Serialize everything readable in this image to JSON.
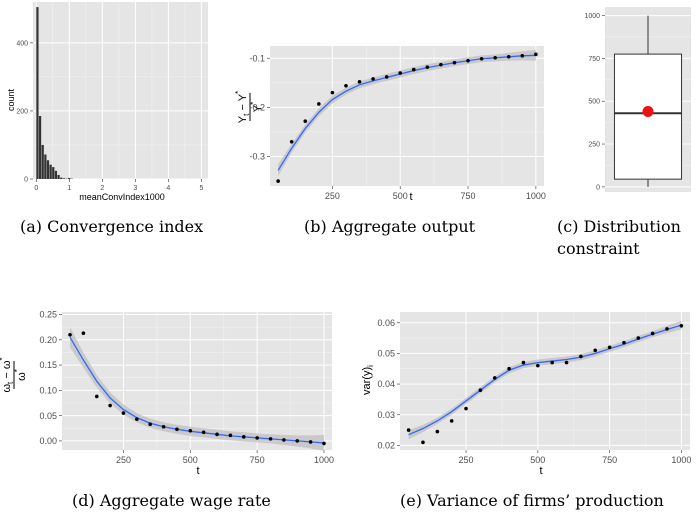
{
  "captions": {
    "a": "(a) Convergence index",
    "b": "(b) Aggregate output",
    "c_line1": "(c)    Distribution",
    "c_line2": "constraint",
    "d": "(d) Aggregate wage rate",
    "e": "(e) Variance of firms’ production"
  },
  "chart_data": [
    {
      "id": "a",
      "type": "bar",
      "xlabel": "meanConvIndex1000",
      "ylabel": "count",
      "xlim": [
        -0.1,
        5.2
      ],
      "ylim": [
        0,
        520
      ],
      "xticks": [
        0,
        1,
        2,
        3,
        4,
        5
      ],
      "yticks": [
        0,
        200,
        400
      ],
      "bin_width": 0.08,
      "x": [
        0.04,
        0.12,
        0.2,
        0.28,
        0.36,
        0.44,
        0.52,
        0.6,
        0.68,
        0.76,
        0.84,
        0.92,
        1.0,
        1.08
      ],
      "values": [
        505,
        185,
        100,
        72,
        55,
        42,
        35,
        24,
        12,
        4,
        2,
        1,
        3,
        1
      ],
      "grid": true
    },
    {
      "id": "b",
      "type": "line",
      "xlabel": "t",
      "ylabel_num": "Y",
      "ylabel_num_sub": "t",
      "ylabel_num_minus": " − Y",
      "ylabel_num_sup": "*",
      "ylabel_den": "Y",
      "ylabel_den_sup": "*",
      "xlim": [
        20,
        1030
      ],
      "ylim": [
        -0.36,
        -0.075
      ],
      "xticks": [
        250,
        500,
        750,
        1000
      ],
      "yticks": [
        -0.3,
        -0.2,
        -0.1
      ],
      "ytick_labels": [
        "-0.3",
        "-0.2",
        "-0.1"
      ],
      "points": {
        "x": [
          50,
          100,
          150,
          200,
          250,
          300,
          350,
          400,
          450,
          500,
          550,
          600,
          650,
          700,
          750,
          800,
          850,
          900,
          950,
          1000
        ],
        "y": [
          -0.35,
          -0.27,
          -0.228,
          -0.193,
          -0.17,
          -0.156,
          -0.148,
          -0.142,
          -0.138,
          -0.13,
          -0.123,
          -0.118,
          -0.113,
          -0.109,
          -0.105,
          -0.101,
          -0.099,
          -0.097,
          -0.095,
          -0.092
        ]
      },
      "fit": {
        "x": [
          50,
          100,
          150,
          200,
          250,
          300,
          350,
          400,
          450,
          500,
          550,
          600,
          650,
          700,
          750,
          800,
          850,
          900,
          950,
          1000
        ],
        "y": [
          -0.328,
          -0.283,
          -0.243,
          -0.21,
          -0.184,
          -0.167,
          -0.154,
          -0.146,
          -0.139,
          -0.132,
          -0.125,
          -0.119,
          -0.114,
          -0.109,
          -0.105,
          -0.101,
          -0.099,
          -0.097,
          -0.095,
          -0.094
        ],
        "band": [
          0.012,
          0.009,
          0.008,
          0.008,
          0.008,
          0.007,
          0.007,
          0.007,
          0.007,
          0.007,
          0.007,
          0.007,
          0.007,
          0.007,
          0.007,
          0.007,
          0.007,
          0.008,
          0.009,
          0.011
        ]
      },
      "grid": true
    },
    {
      "id": "c",
      "type": "box",
      "ylim": [
        -30,
        1050
      ],
      "yticks": [
        0,
        250,
        500,
        750,
        1000
      ],
      "min": 0,
      "q1": 45,
      "median": 430,
      "q3": 775,
      "max": 1000,
      "mean": 440,
      "mean_color": "#ee1111",
      "grid": true
    },
    {
      "id": "d",
      "type": "line",
      "xlabel": "t",
      "ylabel_num": "ω",
      "ylabel_num_sub": "t",
      "ylabel_num_minus": " − ω",
      "ylabel_num_sup": "*",
      "ylabel_den": "ω",
      "ylabel_den_sup": "*",
      "xlim": [
        20,
        1030
      ],
      "ylim": [
        -0.018,
        0.255
      ],
      "xticks": [
        250,
        500,
        750,
        1000
      ],
      "yticks": [
        0.0,
        0.05,
        0.1,
        0.15,
        0.2,
        0.25
      ],
      "ytick_labels": [
        "0.00",
        "0.05",
        "0.10",
        "0.15",
        "0.20",
        "0.25"
      ],
      "points": {
        "x": [
          50,
          100,
          150,
          200,
          250,
          300,
          350,
          400,
          450,
          500,
          550,
          600,
          650,
          700,
          750,
          800,
          850,
          900,
          950,
          1000
        ],
        "y": [
          0.21,
          0.213,
          0.088,
          0.07,
          0.055,
          0.043,
          0.033,
          0.028,
          0.023,
          0.02,
          0.017,
          0.013,
          0.011,
          0.008,
          0.006,
          0.004,
          0.002,
          0.0,
          -0.002,
          -0.005
        ]
      },
      "fit": {
        "x": [
          50,
          100,
          150,
          200,
          250,
          300,
          350,
          400,
          450,
          500,
          550,
          600,
          650,
          700,
          750,
          800,
          850,
          900,
          950,
          1000
        ],
        "y": [
          0.205,
          0.16,
          0.118,
          0.085,
          0.062,
          0.046,
          0.035,
          0.028,
          0.023,
          0.019,
          0.016,
          0.013,
          0.01,
          0.008,
          0.006,
          0.004,
          0.002,
          0.0,
          -0.002,
          -0.004
        ],
        "band": [
          0.02,
          0.015,
          0.012,
          0.011,
          0.01,
          0.009,
          0.009,
          0.009,
          0.009,
          0.009,
          0.009,
          0.009,
          0.009,
          0.009,
          0.009,
          0.009,
          0.01,
          0.011,
          0.013,
          0.016
        ]
      },
      "grid": true
    },
    {
      "id": "e",
      "type": "line",
      "xlabel": "t",
      "ylabel": "var(y)",
      "ylabel_sub": "i",
      "xlim": [
        20,
        1030
      ],
      "ylim": [
        0.0185,
        0.0635
      ],
      "xticks": [
        250,
        500,
        750,
        1000
      ],
      "yticks": [
        0.02,
        0.03,
        0.04,
        0.05,
        0.06
      ],
      "ytick_labels": [
        "0.02",
        "0.03",
        "0.04",
        "0.05",
        "0.06"
      ],
      "points": {
        "x": [
          50,
          100,
          150,
          200,
          250,
          300,
          350,
          400,
          450,
          500,
          550,
          600,
          650,
          700,
          750,
          800,
          850,
          900,
          950,
          1000
        ],
        "y": [
          0.025,
          0.021,
          0.0245,
          0.028,
          0.032,
          0.038,
          0.042,
          0.045,
          0.047,
          0.046,
          0.047,
          0.047,
          0.049,
          0.051,
          0.052,
          0.0535,
          0.055,
          0.0565,
          0.058,
          0.059
        ]
      },
      "fit": {
        "x": [
          50,
          100,
          150,
          200,
          250,
          300,
          350,
          400,
          450,
          500,
          550,
          600,
          650,
          700,
          750,
          800,
          850,
          900,
          950,
          1000
        ],
        "y": [
          0.0235,
          0.0255,
          0.028,
          0.031,
          0.0345,
          0.038,
          0.0415,
          0.0445,
          0.0462,
          0.047,
          0.0475,
          0.048,
          0.0488,
          0.05,
          0.0515,
          0.053,
          0.0547,
          0.0563,
          0.0578,
          0.0592
        ],
        "band": [
          0.0015,
          0.0012,
          0.001,
          0.001,
          0.001,
          0.001,
          0.001,
          0.001,
          0.001,
          0.001,
          0.001,
          0.001,
          0.001,
          0.001,
          0.001,
          0.001,
          0.001,
          0.001,
          0.0012,
          0.0014
        ]
      },
      "grid": true
    }
  ],
  "colors": {
    "panel_bg": "#e5e5e5",
    "grid_major": "#ffffff",
    "grid_minor": "#f2f2f2",
    "tick_text": "#4d4d4d",
    "bar": "#333333",
    "fit_line": "#3366ff",
    "band": "#bfbfbf",
    "point": "#000000"
  }
}
